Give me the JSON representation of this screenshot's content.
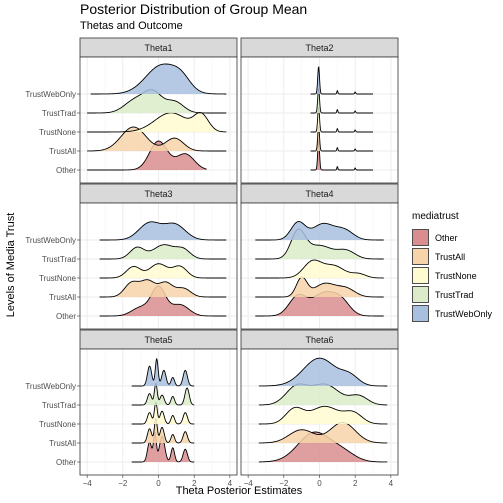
{
  "chart_data": {
    "type": "ridgeline",
    "title": "Posterior Distribution of Group Mean",
    "subtitle": "Thetas and Outcome",
    "xlabel": "Theta Posterior Estimates",
    "ylabel": "Levels of Media Trust",
    "xlim": [
      -4.4,
      4.4
    ],
    "x_ticks": [
      -4,
      -2,
      0,
      2,
      4
    ],
    "categories": [
      "Other",
      "TrustAll",
      "TrustNone",
      "TrustTrad",
      "TrustWebOnly"
    ],
    "legend": {
      "title": "mediatrust",
      "position": "right",
      "items": [
        {
          "label": "Other",
          "color": "#d98d8e"
        },
        {
          "label": "TrustAll",
          "color": "#f7d3a9"
        },
        {
          "label": "TrustNone",
          "color": "#fffbd0"
        },
        {
          "label": "TrustTrad",
          "color": "#dcecc9"
        },
        {
          "label": "TrustWebOnly",
          "color": "#a8bfdf"
        }
      ]
    },
    "panels": [
      {
        "name": "Theta1",
        "ridges": [
          {
            "group": "Other",
            "x_range": [
              -4.0,
              2.7
            ],
            "peaks": [
              [
                0.0,
                0.5,
                0.9
              ],
              [
                1.5,
                0.5,
                0.5
              ]
            ]
          },
          {
            "group": "TrustAll",
            "x_range": [
              -4.0,
              3.8
            ],
            "peaks": [
              [
                -1.4,
                0.7,
                0.75
              ],
              [
                0.9,
                0.5,
                0.4
              ]
            ]
          },
          {
            "group": "TrustNone",
            "x_range": [
              -4.0,
              3.8
            ],
            "peaks": [
              [
                0.7,
                0.9,
                0.6
              ],
              [
                2.4,
                0.4,
                0.5
              ]
            ]
          },
          {
            "group": "TrustTrad",
            "x_range": [
              -4.0,
              3.8
            ],
            "peaks": [
              [
                -0.3,
                0.5,
                0.6
              ],
              [
                -1.3,
                0.6,
                0.4
              ],
              [
                0.9,
                0.5,
                0.35
              ]
            ]
          },
          {
            "group": "TrustWebOnly",
            "x_range": [
              -3.8,
              3.8
            ],
            "peaks": [
              [
                0.2,
                0.9,
                0.9
              ],
              [
                1.3,
                0.5,
                0.3
              ]
            ]
          }
        ]
      },
      {
        "name": "Theta2",
        "ridges": [
          {
            "group": "Other",
            "x_range": [
              -0.5,
              3.0
            ],
            "peaks": [
              [
                -0.05,
                0.05,
                2.2
              ],
              [
                1.0,
                0.03,
                0.25
              ],
              [
                2.0,
                0.03,
                0.15
              ]
            ]
          },
          {
            "group": "TrustAll",
            "x_range": [
              -0.5,
              3.0
            ],
            "peaks": [
              [
                -0.05,
                0.05,
                1.8
              ],
              [
                1.0,
                0.03,
                0.25
              ],
              [
                2.0,
                0.03,
                0.15
              ]
            ]
          },
          {
            "group": "TrustNone",
            "x_range": [
              -0.5,
              3.0
            ],
            "peaks": [
              [
                -0.05,
                0.05,
                1.8
              ],
              [
                1.0,
                0.03,
                0.25
              ],
              [
                2.0,
                0.03,
                0.15
              ]
            ]
          },
          {
            "group": "TrustTrad",
            "x_range": [
              -0.5,
              3.0
            ],
            "peaks": [
              [
                -0.05,
                0.05,
                1.8
              ],
              [
                1.0,
                0.03,
                0.25
              ],
              [
                2.0,
                0.03,
                0.15
              ]
            ]
          },
          {
            "group": "TrustWebOnly",
            "x_range": [
              -0.5,
              3.0
            ],
            "peaks": [
              [
                -0.05,
                0.05,
                2.0
              ],
              [
                1.0,
                0.03,
                0.25
              ],
              [
                2.0,
                0.03,
                0.15
              ]
            ]
          }
        ]
      },
      {
        "name": "Theta3",
        "ridges": [
          {
            "group": "Other",
            "x_range": [
              -3.3,
              3.8
            ],
            "peaks": [
              [
                0.0,
                0.4,
                1.0
              ],
              [
                -1.0,
                0.5,
                0.3
              ],
              [
                1.2,
                0.5,
                0.4
              ]
            ]
          },
          {
            "group": "TrustAll",
            "x_range": [
              -3.3,
              3.8
            ],
            "peaks": [
              [
                -1.5,
                0.4,
                0.5
              ],
              [
                -0.6,
                0.4,
                0.55
              ],
              [
                0.4,
                0.4,
                0.5
              ],
              [
                1.4,
                0.4,
                0.3
              ]
            ]
          },
          {
            "group": "TrustNone",
            "x_range": [
              -3.3,
              3.8
            ],
            "peaks": [
              [
                -1.4,
                0.4,
                0.4
              ],
              [
                0.0,
                0.5,
                0.5
              ],
              [
                1.2,
                0.4,
                0.4
              ]
            ]
          },
          {
            "group": "TrustTrad",
            "x_range": [
              -3.3,
              3.8
            ],
            "peaks": [
              [
                -1.2,
                0.4,
                0.4
              ],
              [
                0.3,
                0.6,
                0.5
              ],
              [
                1.4,
                0.4,
                0.3
              ]
            ]
          },
          {
            "group": "TrustWebOnly",
            "x_range": [
              -3.3,
              3.8
            ],
            "peaks": [
              [
                -0.5,
                0.6,
                0.6
              ],
              [
                0.9,
                0.6,
                0.55
              ]
            ]
          }
        ]
      },
      {
        "name": "Theta4",
        "ridges": [
          {
            "group": "Other",
            "x_range": [
              -3.6,
              3.6
            ],
            "peaks": [
              [
                -1.2,
                0.5,
                0.75
              ],
              [
                0.2,
                0.6,
                0.8
              ],
              [
                1.2,
                0.5,
                0.55
              ]
            ]
          },
          {
            "group": "TrustAll",
            "x_range": [
              -3.6,
              3.6
            ],
            "peaks": [
              [
                -1.0,
                0.3,
                0.7
              ],
              [
                0.3,
                0.6,
                0.5
              ],
              [
                1.5,
                0.5,
                0.3
              ]
            ]
          },
          {
            "group": "TrustNone",
            "x_range": [
              -3.6,
              3.6
            ],
            "peaks": [
              [
                -0.4,
                0.5,
                0.6
              ],
              [
                0.8,
                0.6,
                0.45
              ],
              [
                2.2,
                0.4,
                0.15
              ]
            ]
          },
          {
            "group": "TrustTrad",
            "x_range": [
              -3.6,
              3.6
            ],
            "peaks": [
              [
                -1.2,
                0.4,
                1.0
              ],
              [
                0.0,
                0.7,
                0.5
              ],
              [
                1.5,
                0.5,
                0.3
              ]
            ]
          },
          {
            "group": "TrustWebOnly",
            "x_range": [
              -3.6,
              3.6
            ],
            "peaks": [
              [
                -1.2,
                0.4,
                0.65
              ],
              [
                0.2,
                0.6,
                0.6
              ],
              [
                1.4,
                0.5,
                0.35
              ]
            ]
          }
        ]
      },
      {
        "name": "Theta5",
        "ridges": [
          {
            "group": "Other",
            "x_range": [
              -1.5,
              2.0
            ],
            "peaks": [
              [
                -0.5,
                0.12,
                0.7
              ],
              [
                -0.2,
                0.08,
                1.0
              ],
              [
                0.2,
                0.15,
                0.9
              ],
              [
                0.8,
                0.1,
                0.5
              ],
              [
                1.5,
                0.12,
                0.45
              ]
            ]
          },
          {
            "group": "TrustAll",
            "x_range": [
              -1.5,
              2.0
            ],
            "peaks": [
              [
                -0.5,
                0.12,
                0.5
              ],
              [
                -0.15,
                0.08,
                0.85
              ],
              [
                0.2,
                0.12,
                0.55
              ],
              [
                0.8,
                0.1,
                0.3
              ],
              [
                1.5,
                0.12,
                0.4
              ]
            ]
          },
          {
            "group": "TrustNone",
            "x_range": [
              -1.5,
              2.0
            ],
            "peaks": [
              [
                -0.5,
                0.12,
                0.4
              ],
              [
                -0.15,
                0.08,
                0.75
              ],
              [
                0.2,
                0.12,
                0.45
              ],
              [
                0.8,
                0.1,
                0.3
              ],
              [
                1.5,
                0.12,
                0.4
              ]
            ]
          },
          {
            "group": "TrustTrad",
            "x_range": [
              -1.5,
              2.0
            ],
            "peaks": [
              [
                -0.5,
                0.12,
                0.4
              ],
              [
                -0.15,
                0.08,
                0.75
              ],
              [
                0.2,
                0.12,
                0.35
              ],
              [
                0.8,
                0.1,
                0.3
              ],
              [
                1.6,
                0.12,
                0.6
              ]
            ]
          },
          {
            "group": "TrustWebOnly",
            "x_range": [
              -1.5,
              2.0
            ],
            "peaks": [
              [
                -0.5,
                0.12,
                0.7
              ],
              [
                -0.1,
                0.08,
                0.95
              ],
              [
                0.3,
                0.12,
                0.55
              ],
              [
                0.8,
                0.1,
                0.3
              ],
              [
                1.5,
                0.12,
                0.55
              ]
            ]
          }
        ]
      },
      {
        "name": "Theta6",
        "ridges": [
          {
            "group": "Other",
            "x_range": [
              -3.4,
              3.8
            ],
            "peaks": [
              [
                -0.3,
                0.9,
                1.0
              ],
              [
                1.3,
                0.7,
                0.3
              ]
            ]
          },
          {
            "group": "TrustAll",
            "x_range": [
              -3.4,
              3.8
            ],
            "peaks": [
              [
                -1.0,
                0.7,
                0.45
              ],
              [
                1.3,
                0.7,
                0.7
              ]
            ]
          },
          {
            "group": "TrustNone",
            "x_range": [
              -3.4,
              3.8
            ],
            "peaks": [
              [
                -1.4,
                0.5,
                0.5
              ],
              [
                0.3,
                0.8,
                0.6
              ],
              [
                1.9,
                0.5,
                0.35
              ]
            ]
          },
          {
            "group": "TrustTrad",
            "x_range": [
              -3.4,
              3.8
            ],
            "peaks": [
              [
                -1.3,
                0.6,
                0.6
              ],
              [
                0.3,
                0.8,
                0.7
              ],
              [
                2.2,
                0.5,
                0.3
              ]
            ]
          },
          {
            "group": "TrustWebOnly",
            "x_range": [
              -3.4,
              3.8
            ],
            "peaks": [
              [
                0.0,
                0.9,
                0.95
              ],
              [
                1.7,
                0.5,
                0.3
              ]
            ]
          }
        ]
      }
    ]
  }
}
